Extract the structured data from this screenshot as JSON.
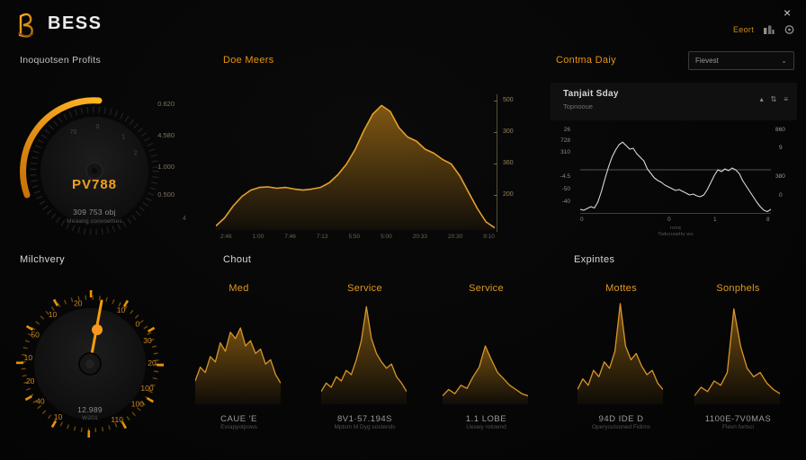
{
  "topbar": {
    "brand": "BESS",
    "close_label": "×",
    "export_label": "Eeort"
  },
  "panels": {
    "p1": {
      "title": "Inoquotsen Profits",
      "gauge_value": "PV788",
      "sub_value": "309 753 obj",
      "sub_caption": "Meaang convoetties",
      "side_labels": [
        "0.620",
        "4.580",
        "1.000",
        "0.500"
      ],
      "corner_label": "4",
      "dial_labels": [
        {
          "t": "70",
          "a": -28
        },
        {
          "t": "0",
          "a": 4
        },
        {
          "t": "1",
          "a": 40
        },
        {
          "t": "2",
          "a": 66
        }
      ]
    },
    "p2": {
      "title": "Doe Meers"
    },
    "p3": {
      "title": "Contma Daiy",
      "dropdown_value": "Fievest",
      "card_title": "Tanjait Sday",
      "card_subtitle": "Topnooue",
      "card_icons": [
        "▴",
        "⇅",
        "≡"
      ]
    },
    "p4": {
      "title": "Milchvery",
      "center_value": "12.989",
      "center_caption": "W201",
      "dial_labels": [
        {
          "t": "20",
          "a": -11
        },
        {
          "t": "10",
          "a": -37
        },
        {
          "t": "10",
          "a": 30
        },
        {
          "t": "50",
          "a": -62
        },
        {
          "t": "0",
          "a": 50
        },
        {
          "t": "30",
          "a": 68
        },
        {
          "t": "10",
          "a": -84
        },
        {
          "t": "20",
          "a": 89
        },
        {
          "t": "20",
          "a": -106
        },
        {
          "t": "100",
          "a": 113
        },
        {
          "t": "40",
          "a": -127
        },
        {
          "t": "100",
          "a": 130
        },
        {
          "t": "10",
          "a": -149
        },
        {
          "t": "110",
          "a": 154
        }
      ]
    },
    "p5": {
      "title": "Chout",
      "items": [
        {
          "label": "Med",
          "value": "CAUE 'E",
          "caption": "Evrapyotpows"
        },
        {
          "label": "Service",
          "value": "8V1·57.194S",
          "caption": "Mptsm M Dyg sostends"
        },
        {
          "label": "Service",
          "value": "1.1 LOBE",
          "caption": "Ueswy rotownd"
        }
      ]
    },
    "p6": {
      "title": "Expintes",
      "items": [
        {
          "label": "Mottes",
          "value": "94D IDE D",
          "caption": "Operycutsoned Fidims"
        },
        {
          "label": "Sonphels",
          "value": "1100E-7V0MAS",
          "caption": "Flevn fortsci"
        }
      ]
    }
  },
  "chart_data": [
    {
      "id": "doe_meers",
      "type": "area",
      "title": "Doe Meers",
      "ylim": [
        0,
        500
      ],
      "yticks": [
        "500",
        "300",
        "360",
        "200"
      ],
      "xticks": [
        "2:46",
        "1:00",
        "7:46",
        "7:13",
        "5:50",
        "5:00",
        "20:33",
        "20:30",
        "9:10"
      ],
      "values": [
        15,
        45,
        90,
        125,
        148,
        158,
        160,
        155,
        158,
        152,
        148,
        152,
        158,
        175,
        205,
        245,
        300,
        370,
        430,
        462,
        440,
        380,
        345,
        330,
        300,
        285,
        262,
        245,
        200,
        140,
        80,
        30,
        8
      ],
      "stroke": "#e5a02c",
      "stroke_width": 1.6,
      "fill": "url(#goldFill)"
    },
    {
      "id": "tanjait",
      "type": "line",
      "title": "Tanjait Sday",
      "ylim": [
        -60,
        860
      ],
      "refline": 420,
      "refline_color": "#6e6e6e",
      "yticks_left": [
        "26",
        "728",
        "310",
        "-4.5",
        "-50",
        "-40"
      ],
      "yticks_right": [
        "860",
        "9",
        "380",
        "0"
      ],
      "xticks": [
        "0",
        "0",
        "1",
        "8"
      ],
      "captions": [
        "ronq",
        "Tsduruseltu wo"
      ],
      "values": [
        -20,
        -30,
        -10,
        10,
        -5,
        60,
        180,
        320,
        450,
        560,
        640,
        700,
        728,
        690,
        650,
        660,
        600,
        560,
        520,
        430,
        380,
        330,
        300,
        280,
        250,
        230,
        210,
        190,
        200,
        180,
        160,
        140,
        150,
        130,
        120,
        140,
        200,
        280,
        360,
        420,
        400,
        430,
        410,
        440,
        420,
        380,
        300,
        240,
        180,
        120,
        60,
        10,
        -30,
        -45,
        -20
      ],
      "stroke": "#d9d9d9",
      "stroke_width": 1.1,
      "fill": null
    },
    {
      "id": "med",
      "type": "area",
      "title": "Med",
      "ylim": [
        0,
        100
      ],
      "values": [
        22,
        35,
        30,
        45,
        40,
        58,
        50,
        68,
        62,
        72,
        55,
        60,
        48,
        52,
        38,
        42,
        28,
        20
      ],
      "stroke": "#d8952a",
      "stroke_width": 1.3,
      "fill": "url(#sparkFill)"
    },
    {
      "id": "service_1",
      "type": "area",
      "title": "Service",
      "ylim": [
        0,
        100
      ],
      "values": [
        12,
        20,
        16,
        26,
        22,
        32,
        28,
        42,
        60,
        92,
        62,
        48,
        40,
        34,
        38,
        26,
        20,
        12
      ],
      "stroke": "#d8952a",
      "stroke_width": 1.3,
      "fill": "url(#sparkFill)"
    },
    {
      "id": "service_2",
      "type": "area",
      "title": "Service",
      "ylim": [
        0,
        100
      ],
      "values": [
        8,
        14,
        10,
        18,
        15,
        26,
        35,
        55,
        42,
        30,
        24,
        18,
        14,
        10,
        8
      ],
      "stroke": "#d8952a",
      "stroke_width": 1.3,
      "fill": "url(#sparkFill)"
    },
    {
      "id": "mottes",
      "type": "area",
      "title": "Mottes",
      "ylim": [
        0,
        100
      ],
      "values": [
        14,
        24,
        18,
        32,
        26,
        40,
        34,
        50,
        95,
        55,
        42,
        48,
        36,
        28,
        32,
        20,
        14
      ],
      "stroke": "#d8952a",
      "stroke_width": 1.3,
      "fill": "url(#sparkFill)"
    },
    {
      "id": "sonphels",
      "type": "area",
      "title": "Sonphels",
      "ylim": [
        0,
        100
      ],
      "values": [
        8,
        16,
        12,
        22,
        18,
        30,
        90,
        55,
        34,
        26,
        30,
        20,
        14,
        10
      ],
      "stroke": "#d8952a",
      "stroke_width": 1.3,
      "fill": "url(#sparkFill)"
    }
  ],
  "colors": {
    "accent": "#f59e0b",
    "bg": "#060606"
  }
}
